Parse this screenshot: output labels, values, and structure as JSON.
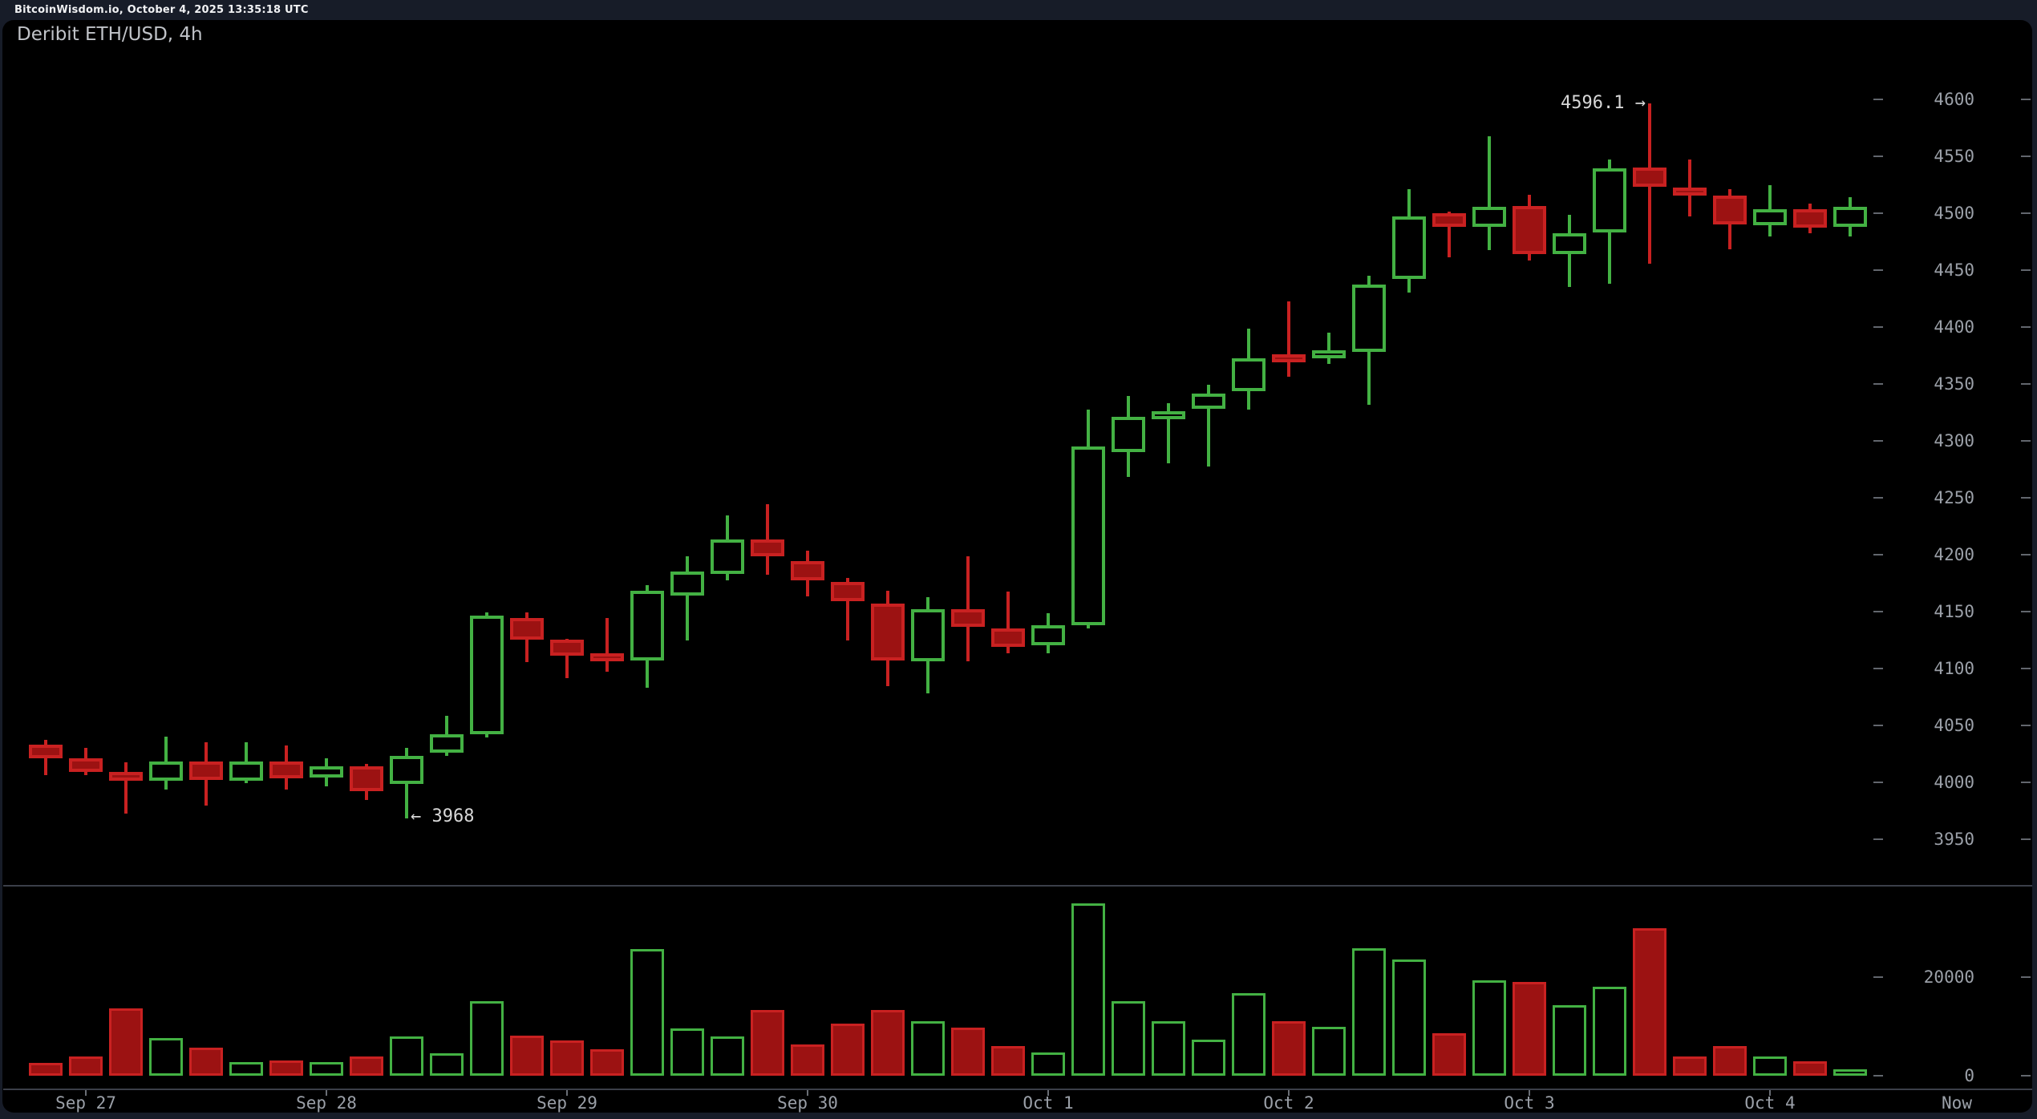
{
  "header": {
    "text": "BitcoinWisdom.io, October 4, 2025 13:35:18 UTC"
  },
  "chart": {
    "title": "Deribit ETH/USD, 4h"
  },
  "annotations": {
    "high_label": "4596.1 →",
    "high_value": 4596.1,
    "high_candle_index": 40,
    "low_label": "← 3968",
    "low_value": 3968,
    "low_candle_index": 9
  },
  "colors": {
    "background": "#171c28",
    "panel": "#000000",
    "bull_stroke": "#43b143",
    "bear_stroke": "#c92121",
    "bear_fill": "#9c1212",
    "axis_text": "#9ba0a8",
    "annotation_text": "#d8d8d8"
  },
  "chart_data": {
    "type": "candlestick",
    "symbol": "Deribit ETH/USD",
    "interval": "4h",
    "legend_position": "none",
    "grid": false,
    "price_axis_ticks": [
      4600,
      4550,
      4500,
      4450,
      4400,
      4350,
      4300,
      4250,
      4200,
      4150,
      4100,
      4050,
      4000,
      3950
    ],
    "volume_axis_ticks": [
      {
        "value": 20000,
        "label": "20000"
      },
      {
        "value": 0,
        "label": "0"
      }
    ],
    "x_labels": [
      {
        "label": "Sep 27",
        "candle_index": 1
      },
      {
        "label": "Sep 28",
        "candle_index": 7
      },
      {
        "label": "Sep 29",
        "candle_index": 13
      },
      {
        "label": "Sep 30",
        "candle_index": 19
      },
      {
        "label": "Oct 1",
        "candle_index": 25
      },
      {
        "label": "Oct 2",
        "candle_index": 31
      },
      {
        "label": "Oct 3",
        "candle_index": 37
      },
      {
        "label": "Oct 4",
        "candle_index": 43
      },
      {
        "label": "Now",
        "candle_index": null
      }
    ],
    "candles_format": [
      "open",
      "high",
      "low",
      "close",
      "volume"
    ],
    "candles": [
      [
        4033,
        4037,
        4006,
        4021,
        2600
      ],
      [
        4021,
        4030,
        4006,
        4009,
        3800
      ],
      [
        4009,
        4017,
        3972,
        4001,
        13700
      ],
      [
        4001,
        4040,
        3993,
        4018,
        7700
      ],
      [
        4018,
        4035,
        3979,
        4002,
        5700
      ],
      [
        4001,
        4035,
        3999,
        4018,
        2700
      ],
      [
        4018,
        4032,
        3993,
        4003,
        3100
      ],
      [
        4004,
        4021,
        3996,
        4014,
        2700
      ],
      [
        4014,
        4016,
        3984,
        3992,
        3800
      ],
      [
        3998,
        4030,
        3968,
        4023,
        8000
      ],
      [
        4026,
        4058,
        4023,
        4042,
        4600
      ],
      [
        4042,
        4149,
        4039,
        4146,
        15200
      ],
      [
        4144,
        4149,
        4105,
        4125,
        8200
      ],
      [
        4125,
        4126,
        4091,
        4111,
        7100
      ],
      [
        4112,
        4144,
        4097,
        4107,
        5300
      ],
      [
        4107,
        4173,
        4083,
        4168,
        25800
      ],
      [
        4164,
        4198,
        4124,
        4185,
        9600
      ],
      [
        4183,
        4234,
        4177,
        4213,
        8000
      ],
      [
        4213,
        4244,
        4182,
        4198,
        13300
      ],
      [
        4194,
        4203,
        4163,
        4177,
        6400
      ],
      [
        4176,
        4179,
        4124,
        4159,
        10600
      ],
      [
        4157,
        4168,
        4084,
        4107,
        13300
      ],
      [
        4106,
        4162,
        4078,
        4152,
        11100
      ],
      [
        4152,
        4198,
        4106,
        4136,
        9700
      ],
      [
        4135,
        4167,
        4113,
        4119,
        6000
      ],
      [
        4120,
        4148,
        4113,
        4138,
        4700
      ],
      [
        4138,
        4327,
        4135,
        4295,
        35100
      ],
      [
        4290,
        4339,
        4268,
        4321,
        15200
      ],
      [
        4319,
        4333,
        4280,
        4326,
        11100
      ],
      [
        4328,
        4349,
        4277,
        4341,
        7300
      ],
      [
        4343,
        4398,
        4327,
        4372,
        16800
      ],
      [
        4374,
        4422,
        4356,
        4371,
        11100
      ],
      [
        4374,
        4395,
        4367,
        4377,
        10000
      ],
      [
        4378,
        4445,
        4331,
        4437,
        26000
      ],
      [
        4442,
        4521,
        4430,
        4497,
        23600
      ],
      [
        4500,
        4501,
        4461,
        4488,
        8600
      ],
      [
        4488,
        4567,
        4467,
        4505,
        19400
      ],
      [
        4506,
        4516,
        4458,
        4464,
        19000
      ],
      [
        4464,
        4498,
        4435,
        4482,
        14400
      ],
      [
        4483,
        4547,
        4438,
        4539,
        18100
      ],
      [
        4540,
        4596.1,
        4455,
        4523,
        30000
      ],
      [
        4522,
        4547,
        4497,
        4516,
        3800
      ],
      [
        4515,
        4521,
        4468,
        4490,
        6000
      ],
      [
        4489,
        4524,
        4479,
        4503,
        3800
      ],
      [
        4503,
        4508,
        4482,
        4487,
        2900
      ],
      [
        4488,
        4514,
        4479,
        4505,
        1200
      ]
    ]
  }
}
